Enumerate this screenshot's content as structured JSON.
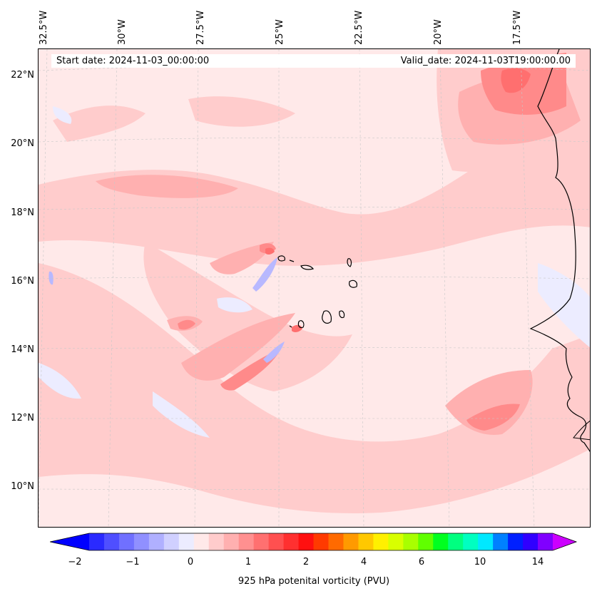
{
  "header": {
    "start_date": "Start date: 2024-11-03_00:00:00",
    "valid_date": "Valid_date: 2024-11-03T19:00:00.00"
  },
  "longitude_labels": [
    "32.5°W",
    "30°W",
    "27.5°W",
    "25°W",
    "22.5°W",
    "20°W",
    "17.5°W"
  ],
  "latitude_labels": [
    "22°N",
    "20°N",
    "18°N",
    "16°N",
    "14°N",
    "12°N",
    "10°N"
  ],
  "colorbar": {
    "label": "925 hPa potenital vorticity (PVU)",
    "tick_labels": [
      "−2",
      "−1",
      "0",
      "1",
      "2",
      "4",
      "6",
      "10",
      "14"
    ],
    "colors": [
      "#0000ff",
      "#2a2aff",
      "#4f4fff",
      "#7070ff",
      "#9090ff",
      "#b0b0ff",
      "#d0d0ff",
      "#ececff",
      "#ffe9e9",
      "#ffcccc",
      "#ffb0b0",
      "#ff9090",
      "#ff7070",
      "#ff5050",
      "#ff3030",
      "#ff1010",
      "#ff3a00",
      "#ff6a00",
      "#ff9a00",
      "#ffc800",
      "#fff000",
      "#d8ff00",
      "#a8ff00",
      "#60ff00",
      "#00ff20",
      "#00ff80",
      "#00ffc0",
      "#00e8ff",
      "#0080ff",
      "#0020ff",
      "#3000ff",
      "#8000ff",
      "#cc00ff"
    ]
  },
  "map": {
    "region": "Eastern Tropical Atlantic, Cape Verde",
    "field": "925 hPa potential vorticity"
  }
}
